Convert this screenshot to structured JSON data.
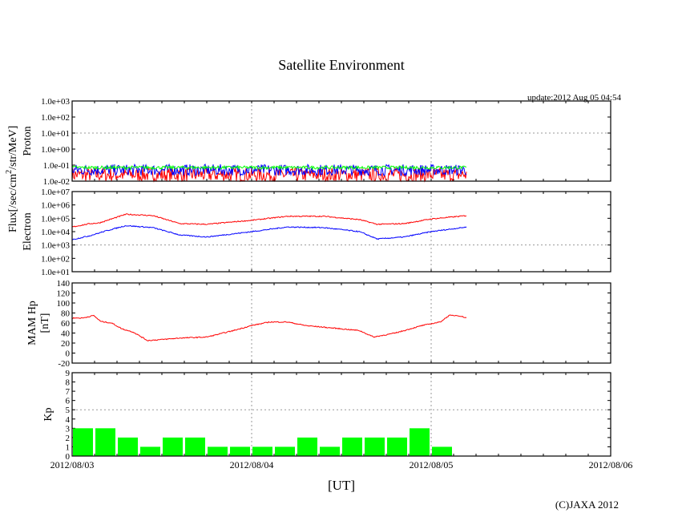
{
  "title": "Satellite Environment",
  "update": "update:2012 Aug 05 04:54",
  "copyright": "(C)JAXA 2012",
  "xlabel": "[UT]",
  "flux_label": "Flux[/sec/cm",
  "flux_sup": "2",
  "flux_label2": "/str/MeV]",
  "colors": {
    "red": "#ff0000",
    "blue": "#0000ff",
    "green": "#00ff00"
  },
  "chart_data": {
    "type": "line",
    "x_ticks": [
      "2012/08/03",
      "2012/08/04",
      "2012/08/05",
      "2012/08/06"
    ],
    "x_range_days": [
      0,
      3
    ],
    "data_end_day": 2.2,
    "panels": [
      {
        "name": "proton",
        "ylabel": "Proton",
        "scale": "log",
        "ylim": [
          -2,
          3
        ],
        "ticks": [
          "1.0e-02",
          "1.0e-01",
          "1.0e+00",
          "1.0e+01",
          "1.0e+02",
          "1.0e+03"
        ],
        "grid_y": 1,
        "series": [
          {
            "name": "proton-red",
            "color": "#ff0000",
            "level_log": -1.6,
            "noise": 0.45
          },
          {
            "name": "proton-blue",
            "color": "#0000ff",
            "level_log": -1.3,
            "noise": 0.35
          },
          {
            "name": "proton-green",
            "color": "#00ff00",
            "level_log": -1.15,
            "noise": 0.1
          }
        ]
      },
      {
        "name": "electron",
        "ylabel": "Electron",
        "scale": "log",
        "ylim": [
          1,
          7
        ],
        "ticks": [
          "1.0e+01",
          "1.0e+02",
          "1.0e+03",
          "1.0e+04",
          "1.0e+05",
          "1.0e+06",
          "1.0e+07"
        ],
        "grid_y": 3,
        "series": [
          {
            "name": "electron-red",
            "color": "#ff0000",
            "x": [
              0,
              0.1,
              0.15,
              0.3,
              0.45,
              0.6,
              0.75,
              1.0,
              1.2,
              1.4,
              1.6,
              1.7,
              1.85,
              2.0,
              2.2
            ],
            "y": [
              4.35,
              4.6,
              4.65,
              5.3,
              5.2,
              4.6,
              4.55,
              4.85,
              5.15,
              5.15,
              4.9,
              4.55,
              4.6,
              4.95,
              5.2
            ]
          },
          {
            "name": "electron-blue",
            "color": "#0000ff",
            "x": [
              0,
              0.1,
              0.2,
              0.3,
              0.45,
              0.6,
              0.75,
              1.0,
              1.2,
              1.4,
              1.6,
              1.7,
              1.85,
              2.0,
              2.2
            ],
            "y": [
              3.4,
              3.7,
              4.1,
              4.45,
              4.3,
              3.75,
              3.6,
              4.0,
              4.35,
              4.3,
              4.0,
              3.45,
              3.6,
              4.0,
              4.35
            ]
          }
        ]
      },
      {
        "name": "mam-hp",
        "ylabel": "MAM Hp",
        "ylabel2": "[nT]",
        "scale": "linear",
        "ylim": [
          -20,
          140
        ],
        "ticks": [
          "-20",
          "0",
          "20",
          "40",
          "60",
          "80",
          "100",
          "120",
          "140"
        ],
        "series": [
          {
            "name": "mam-hp",
            "color": "#ff0000",
            "x": [
              0,
              0.06,
              0.12,
              0.16,
              0.22,
              0.28,
              0.34,
              0.42,
              0.5,
              0.6,
              0.75,
              0.9,
              1.0,
              1.1,
              1.2,
              1.3,
              1.45,
              1.6,
              1.68,
              1.8,
              1.95,
              2.05,
              2.1,
              2.15,
              2.2
            ],
            "y": [
              70,
              70,
              75,
              63,
              60,
              48,
              42,
              25,
              27,
              30,
              32,
              45,
              55,
              62,
              62,
              55,
              50,
              45,
              32,
              40,
              55,
              62,
              75,
              75,
              70
            ]
          }
        ]
      },
      {
        "name": "kp",
        "ylabel": "Kp",
        "scale": "linear",
        "ylim": [
          0,
          9
        ],
        "type": "bar",
        "ticks": [
          "0",
          "1",
          "2",
          "3",
          "4",
          "5",
          "6",
          "7",
          "8",
          "9"
        ],
        "grid_y": 5,
        "bar_interval_hours": 3,
        "values": [
          3,
          3,
          2,
          1,
          2,
          2,
          1,
          1,
          1,
          1,
          2,
          1,
          2,
          2,
          2,
          3,
          1
        ]
      }
    ]
  }
}
